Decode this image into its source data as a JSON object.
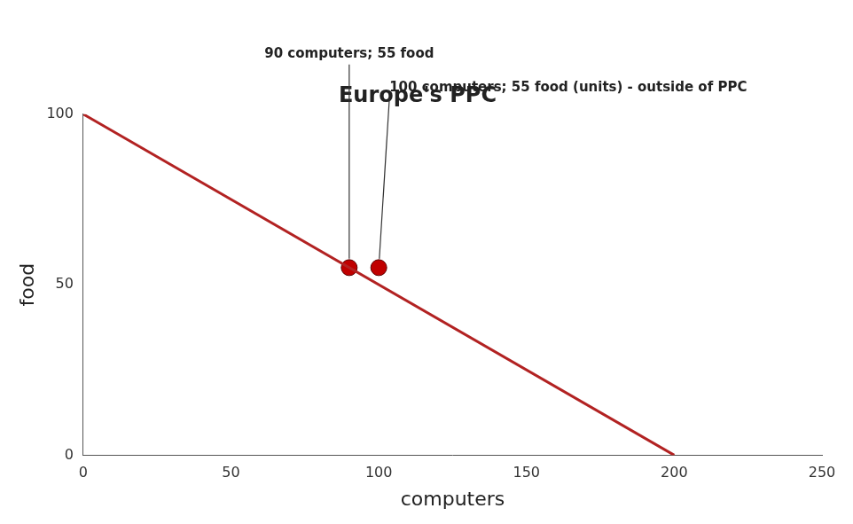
{
  "chart_data": {
    "type": "line",
    "title": "Europe's PPC",
    "x_label": "computers",
    "y_label": "food",
    "series": [
      {
        "type": "line",
        "color": "#b22222",
        "line_style": "solid",
        "x": [
          0,
          200
        ],
        "values": [
          100,
          0
        ]
      },
      {
        "type": "scatter",
        "color": "#c00000",
        "marker": "circle",
        "x": [
          90,
          100
        ],
        "values": [
          55,
          55
        ]
      }
    ],
    "annotations": [
      {
        "text": "90 computers; 55 food",
        "x": 90,
        "y": 55
      },
      {
        "text": "100 computers; 55 food (units) - outside of PPC",
        "x": 100,
        "y": 55
      }
    ],
    "xlim": [
      0,
      250
    ],
    "xticks": [
      0,
      50,
      100,
      150,
      200,
      250
    ],
    "ylim": [
      0,
      100
    ],
    "yticks": [
      0,
      50,
      100
    ],
    "grid": false
  }
}
